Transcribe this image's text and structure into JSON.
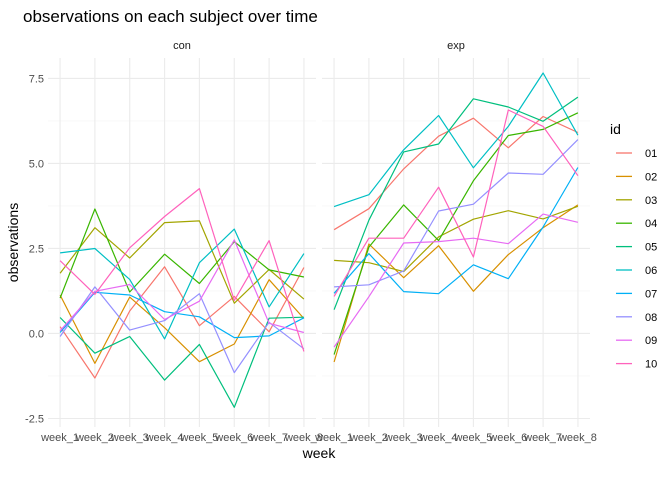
{
  "chart_data": {
    "type": "line",
    "title": "observations on each subject over time",
    "xlabel": "week",
    "ylabel": "observations",
    "legend_title": "id",
    "legend_position": "right",
    "ylim": [
      -2.75,
      8.1
    ],
    "y_major_ticks": [
      -2.5,
      0.0,
      2.5,
      5.0,
      7.5
    ],
    "y_tick_labels": [
      "-2.5",
      "0.0",
      "2.5",
      "5.0",
      "7.5"
    ],
    "y_minor_ticks": [
      -1.25,
      1.25,
      3.75,
      6.25
    ],
    "categories": [
      "week_1",
      "week_2",
      "week_3",
      "week_4",
      "week_5",
      "week_6",
      "week_7",
      "week_8"
    ],
    "legend": [
      {
        "id": "01",
        "color": "#F8766D"
      },
      {
        "id": "02",
        "color": "#D89000"
      },
      {
        "id": "03",
        "color": "#A3A500"
      },
      {
        "id": "04",
        "color": "#39B600"
      },
      {
        "id": "05",
        "color": "#00BF7D"
      },
      {
        "id": "06",
        "color": "#00BFC4"
      },
      {
        "id": "07",
        "color": "#00B0F6"
      },
      {
        "id": "08",
        "color": "#9590FF"
      },
      {
        "id": "09",
        "color": "#E76BF3"
      },
      {
        "id": "10",
        "color": "#FF62BC"
      }
    ],
    "panels": [
      {
        "name": "con",
        "series": [
          {
            "id": "01",
            "values": [
              0.2,
              -1.31,
              0.66,
              1.96,
              0.23,
              1.09,
              0.05,
              1.94
            ]
          },
          {
            "id": "02",
            "values": [
              1.13,
              -0.88,
              1.07,
              0.17,
              -0.83,
              -0.31,
              1.58,
              0.44
            ]
          },
          {
            "id": "03",
            "values": [
              1.77,
              3.11,
              2.22,
              3.26,
              3.31,
              0.89,
              1.88,
              1.01
            ]
          },
          {
            "id": "04",
            "values": [
              1.04,
              3.66,
              1.22,
              2.33,
              1.47,
              2.7,
              1.87,
              1.66
            ]
          },
          {
            "id": "05",
            "values": [
              0.47,
              -0.58,
              -0.09,
              -1.37,
              -0.32,
              -2.17,
              0.45,
              0.48
            ]
          },
          {
            "id": "06",
            "values": [
              2.37,
              2.5,
              1.59,
              -0.16,
              2.08,
              3.07,
              0.78,
              2.35
            ]
          },
          {
            "id": "07",
            "values": [
              0.03,
              1.21,
              1.13,
              0.64,
              0.49,
              -0.12,
              -0.07,
              0.46
            ]
          },
          {
            "id": "08",
            "values": [
              -0.09,
              1.37,
              0.1,
              0.38,
              1.17,
              -1.15,
              0.33,
              -0.45
            ]
          },
          {
            "id": "09",
            "values": [
              0.08,
              1.24,
              1.44,
              0.41,
              0.95,
              2.75,
              0.3,
              0.03
            ]
          },
          {
            "id": "10",
            "values": [
              2.14,
              1.15,
              2.52,
              3.44,
              4.26,
              0.97,
              2.73,
              -0.53
            ]
          }
        ]
      },
      {
        "name": "exp",
        "series": [
          {
            "id": "01",
            "values": [
              3.05,
              3.67,
              4.84,
              5.8,
              6.33,
              5.46,
              6.38,
              5.91
            ]
          },
          {
            "id": "02",
            "values": [
              -0.84,
              2.63,
              1.64,
              2.58,
              1.24,
              2.32,
              3.11,
              3.78
            ]
          },
          {
            "id": "03",
            "values": [
              2.15,
              2.08,
              1.82,
              2.84,
              3.36,
              3.61,
              3.37,
              3.74
            ]
          },
          {
            "id": "04",
            "values": [
              -0.62,
              2.54,
              3.78,
              2.73,
              4.49,
              5.82,
              6.0,
              6.49
            ]
          },
          {
            "id": "05",
            "values": [
              0.7,
              3.33,
              5.34,
              5.57,
              6.9,
              6.66,
              6.24,
              6.95
            ]
          },
          {
            "id": "06",
            "values": [
              3.73,
              4.08,
              5.4,
              6.41,
              4.87,
              6.09,
              7.66,
              5.83
            ]
          },
          {
            "id": "07",
            "values": [
              1.18,
              2.35,
              1.23,
              1.17,
              2.02,
              1.61,
              3.13,
              4.88
            ]
          },
          {
            "id": "08",
            "values": [
              1.37,
              1.43,
              1.84,
              3.6,
              3.8,
              4.72,
              4.68,
              5.7
            ]
          },
          {
            "id": "09",
            "values": [
              -0.4,
              1.08,
              2.66,
              2.7,
              2.8,
              2.64,
              3.51,
              3.27
            ]
          },
          {
            "id": "10",
            "values": [
              1.09,
              2.8,
              2.8,
              4.3,
              2.25,
              6.57,
              6.09,
              4.64
            ]
          }
        ]
      }
    ]
  }
}
